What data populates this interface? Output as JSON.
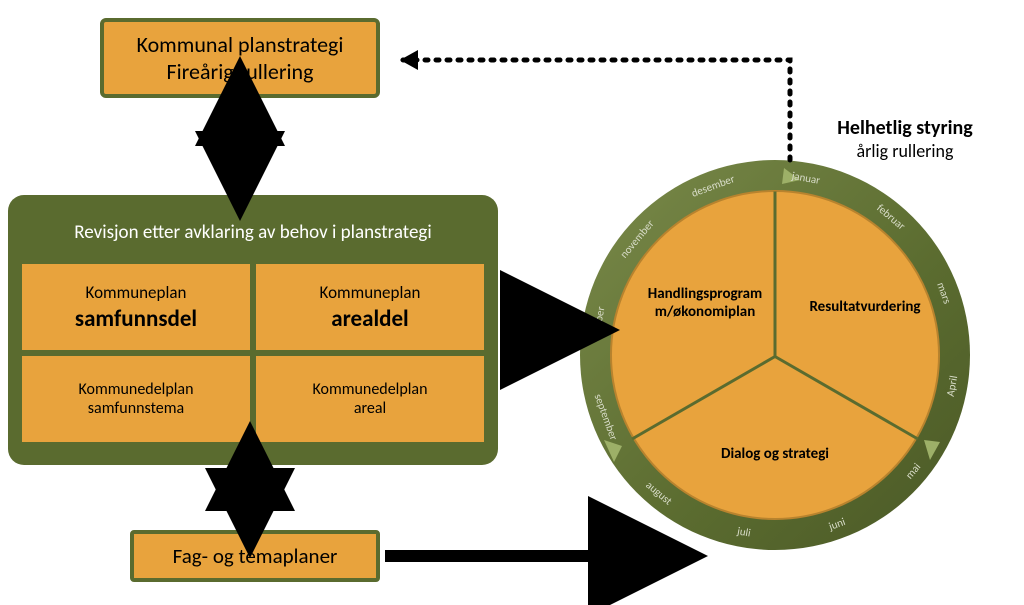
{
  "colors": {
    "orange": "#e8a33d",
    "olive": "#5a6b2f",
    "olive_light": "#7a8a4a",
    "olive_dark": "#4a5826",
    "ring_text": "#d8dcc8",
    "black": "#000000",
    "white": "#ffffff"
  },
  "top_box": {
    "line1": "Kommunal planstrategi",
    "line2": "Fireårig rullering"
  },
  "panel": {
    "title": "Revisjon etter avklaring av behov i planstrategi",
    "cells": [
      {
        "small": "Kommuneplan",
        "big": "samfunnsdel"
      },
      {
        "small": "Kommuneplan",
        "big": "arealdel"
      },
      {
        "line1": "Kommunedelplan",
        "line2": "samfunnstema"
      },
      {
        "line1": "Kommunedelplan",
        "line2": "areal"
      }
    ]
  },
  "bottom_box": {
    "label": "Fag- og temaplaner"
  },
  "header": {
    "bold": "Helhetlig styring",
    "reg": "årlig rullering"
  },
  "circle": {
    "segments": {
      "top_left": {
        "line1": "Handlingsprogram",
        "line2": "m/økonomiplan"
      },
      "top_right": "Resultatvurdering",
      "bottom": "Dialog og strategi"
    },
    "months": [
      "januar",
      "februar",
      "mars",
      "April",
      "mai",
      "juni",
      "juli",
      "august",
      "september",
      "oktober",
      "november",
      "desember"
    ]
  },
  "diagram": {
    "type": "flowchart",
    "background_color": "#ffffff",
    "nodes": [
      {
        "id": "top",
        "type": "box",
        "fill": "#e8a33d",
        "border": "#5a6b2f"
      },
      {
        "id": "panel",
        "type": "panel",
        "fill": "#5a6b2f"
      },
      {
        "id": "bottom",
        "type": "box",
        "fill": "#e8a33d",
        "border": "#5a6b2f"
      },
      {
        "id": "circle",
        "type": "pie-ring",
        "fill": "#e8a33d",
        "ring": "#5a6b2f",
        "segments": 3,
        "months": 12
      }
    ],
    "edges": [
      {
        "from": "top",
        "to": "panel",
        "style": "double-arrow",
        "color": "#000000"
      },
      {
        "from": "panel",
        "to": "bottom",
        "style": "double-arrow",
        "color": "#000000"
      },
      {
        "from": "panel",
        "to": "circle",
        "style": "arrow",
        "color": "#000000"
      },
      {
        "from": "bottom",
        "to": "circle",
        "style": "arrow",
        "color": "#000000"
      },
      {
        "from": "circle",
        "to": "top",
        "style": "dotted-arrow",
        "color": "#000000"
      }
    ]
  }
}
